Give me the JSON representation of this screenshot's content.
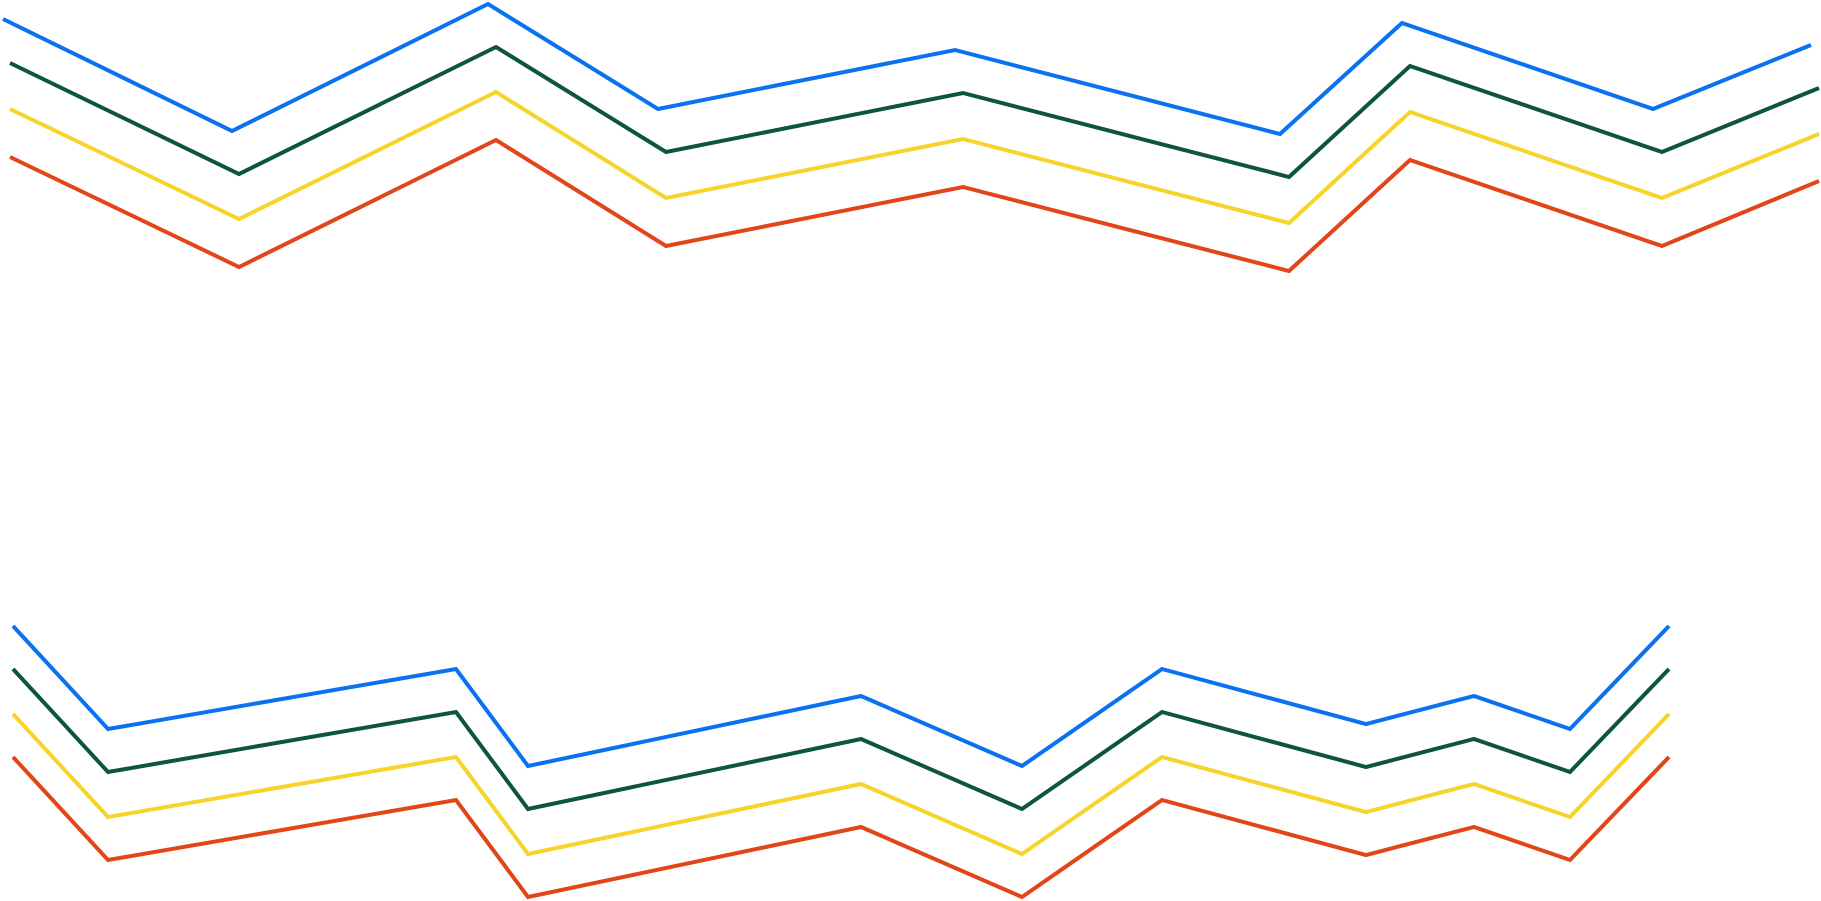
{
  "colors": {
    "blue": "#0a72f0",
    "dark_green": "#0e5443",
    "yellow": "#f6d42b",
    "orange_red": "#e24517"
  },
  "groups": [
    {
      "name": "upper-zigzag-group",
      "lines": [
        {
          "name": "upper-blue-line",
          "color_key": "blue"
        },
        {
          "name": "upper-green-line",
          "color_key": "dark_green"
        },
        {
          "name": "upper-yellow-line",
          "color_key": "yellow"
        },
        {
          "name": "upper-red-line",
          "color_key": "orange_red"
        }
      ]
    },
    {
      "name": "lower-zigzag-group",
      "lines": [
        {
          "name": "lower-blue-line",
          "color_key": "blue"
        },
        {
          "name": "lower-green-line",
          "color_key": "dark_green"
        },
        {
          "name": "lower-yellow-line",
          "color_key": "yellow"
        },
        {
          "name": "lower-red-line",
          "color_key": "orange_red"
        }
      ]
    }
  ]
}
